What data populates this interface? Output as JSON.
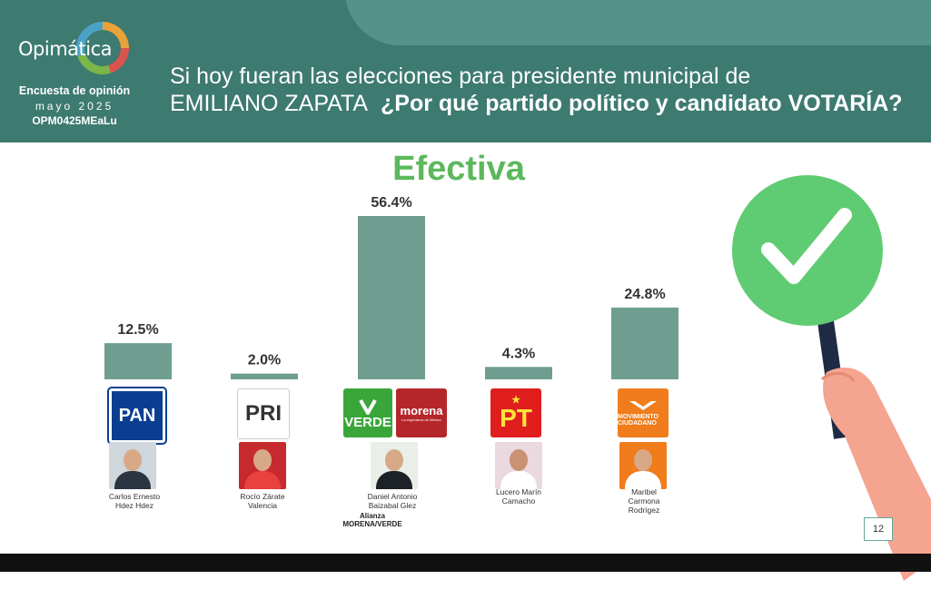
{
  "header": {
    "brand": "Opimática",
    "survey_name": "Encuesta de opinión",
    "survey_date": "mayo 2025",
    "survey_code": "OPM0425MEaLu",
    "question_line1": "Si hoy fueran las elecciones para presidente municipal de",
    "question_place": "EMILIANO ZAPATA",
    "question_bold": "¿Por qué partido político y candidato VOTARÍA?"
  },
  "parties": {
    "pan": "PAN",
    "pri": "PRI",
    "verde": "VERDE",
    "morena": "morena",
    "morena_tagline": "La esperanza de México",
    "pt": "PT",
    "mc": "MOVIMIENTO CIUDADANO"
  },
  "candidates": [
    {
      "name_line1": "Carlos Ernesto",
      "name_line2": "Hdez Hdez",
      "name_line3": ""
    },
    {
      "name_line1": "Rocío Zárate",
      "name_line2": "Valencia",
      "name_line3": ""
    },
    {
      "name_line1": "Daniel Antonio",
      "name_line2": "Baizabal Glez",
      "name_line3": ""
    },
    {
      "name_line1": "Lucero Marín",
      "name_line2": "Camacho",
      "name_line3": ""
    },
    {
      "name_line1": "Maribel",
      "name_line2": "Carmona",
      "name_line3": "Rodrígez"
    }
  ],
  "alliance": {
    "line1": "Alianza",
    "line2": "MORENA/VERDE"
  },
  "page_number": "12",
  "colors": {
    "header": "#3d7a70",
    "bar": "#6f9e91",
    "title": "#5cb85c",
    "check": "#5fcb72"
  },
  "chart_data": {
    "type": "bar",
    "title": "Efectiva",
    "categories": [
      "PAN",
      "PRI",
      "MORENA/VERDE",
      "PT",
      "MOVIMIENTO CIUDADANO"
    ],
    "values": [
      12.5,
      2.0,
      56.4,
      4.3,
      24.8
    ],
    "value_labels": [
      "12.5%",
      "2.0%",
      "56.4%",
      "4.3%",
      "24.8%"
    ],
    "ylim": [
      0,
      56.4
    ],
    "grid": false,
    "legend": "none"
  }
}
